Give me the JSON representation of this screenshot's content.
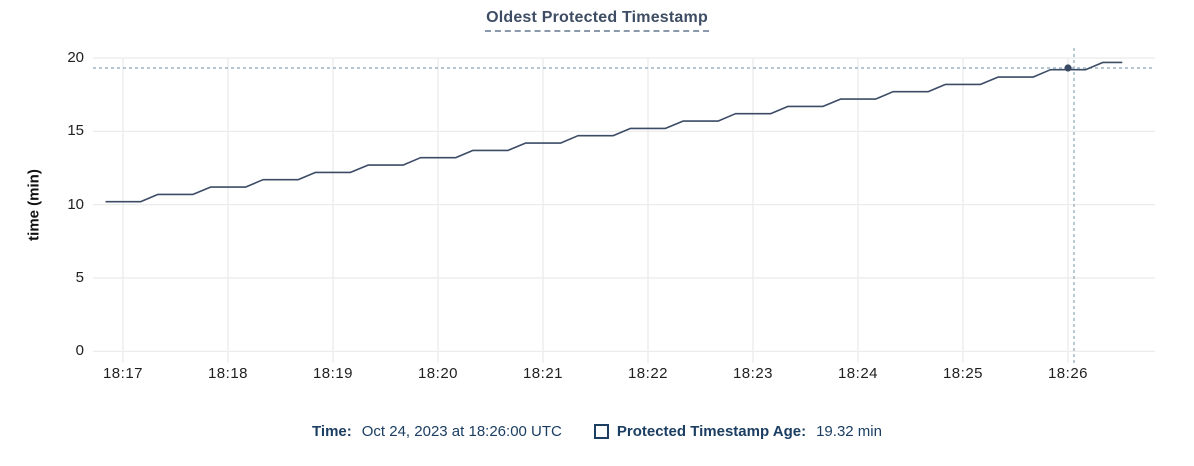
{
  "title": "Oldest Protected Timestamp",
  "y_axis_label": "time (min)",
  "legend": {
    "time_label": "Time:",
    "time_value": "Oct 24, 2023 at 18:26:00 UTC",
    "series_label": "Protected Timestamp Age:",
    "series_value": "19.32 min",
    "swatch_icon": "hollow-square-swatch"
  },
  "colors": {
    "line": "#3c4c66",
    "dot": "#3a4a63",
    "grid_h": "#e9e9e9",
    "grid_v": "#ededed",
    "crosshair": "#9db3c3",
    "title_text": "#3e4d63",
    "axis_text": "#212121",
    "legend_text": "#1b3e62",
    "background": "#ffffff"
  },
  "chart_data": {
    "type": "line",
    "title": "Oldest Protected Timestamp",
    "xlabel": "",
    "ylabel": "time (min)",
    "ylim": [
      0,
      20
    ],
    "grid": true,
    "legend_position": "bottom",
    "series": [
      {
        "name": "Protected Timestamp Age",
        "unit": "min",
        "style": "staircase"
      }
    ],
    "y_ticks": [
      {
        "label": "0",
        "value": 0
      },
      {
        "label": "5",
        "value": 5
      },
      {
        "label": "10",
        "value": 10
      },
      {
        "label": "15",
        "value": 15
      },
      {
        "label": "20",
        "value": 20
      }
    ],
    "x_ticks": [
      {
        "label": "18:17",
        "t": 60
      },
      {
        "label": "18:18",
        "t": 120
      },
      {
        "label": "18:19",
        "t": 180
      },
      {
        "label": "18:20",
        "t": 240
      },
      {
        "label": "18:21",
        "t": 300
      },
      {
        "label": "18:22",
        "t": 360
      },
      {
        "label": "18:23",
        "t": 420
      },
      {
        "label": "18:24",
        "t": 480
      },
      {
        "label": "18:25",
        "t": 540
      },
      {
        "label": "18:26",
        "t": 600
      }
    ],
    "t_unit": "seconds after 18:16:00 UTC on Oct 24, 2023",
    "points": [
      [
        50,
        10.2
      ],
      [
        70,
        10.2
      ],
      [
        80,
        10.7
      ],
      [
        100,
        10.7
      ],
      [
        110,
        11.2
      ],
      [
        130,
        11.2
      ],
      [
        140,
        11.7
      ],
      [
        160,
        11.7
      ],
      [
        170,
        12.2
      ],
      [
        190,
        12.2
      ],
      [
        200,
        12.7
      ],
      [
        220,
        12.7
      ],
      [
        230,
        13.2
      ],
      [
        250,
        13.2
      ],
      [
        260,
        13.7
      ],
      [
        280,
        13.7
      ],
      [
        290,
        14.2
      ],
      [
        310,
        14.2
      ],
      [
        320,
        14.7
      ],
      [
        340,
        14.7
      ],
      [
        350,
        15.2
      ],
      [
        370,
        15.2
      ],
      [
        380,
        15.7
      ],
      [
        400,
        15.7
      ],
      [
        410,
        16.2
      ],
      [
        430,
        16.2
      ],
      [
        440,
        16.7
      ],
      [
        460,
        16.7
      ],
      [
        470,
        17.2
      ],
      [
        490,
        17.2
      ],
      [
        500,
        17.7
      ],
      [
        520,
        17.7
      ],
      [
        530,
        18.2
      ],
      [
        550,
        18.2
      ],
      [
        560,
        18.7
      ],
      [
        580,
        18.7
      ],
      [
        590,
        19.2
      ],
      [
        610,
        19.2
      ],
      [
        620,
        19.7
      ],
      [
        631,
        19.7
      ]
    ],
    "hover": {
      "t": 600,
      "x_label": "18:26",
      "value": 19.32,
      "value_text": "19.32 min",
      "time_text": "Oct 24, 2023 at 18:26:00 UTC"
    }
  }
}
